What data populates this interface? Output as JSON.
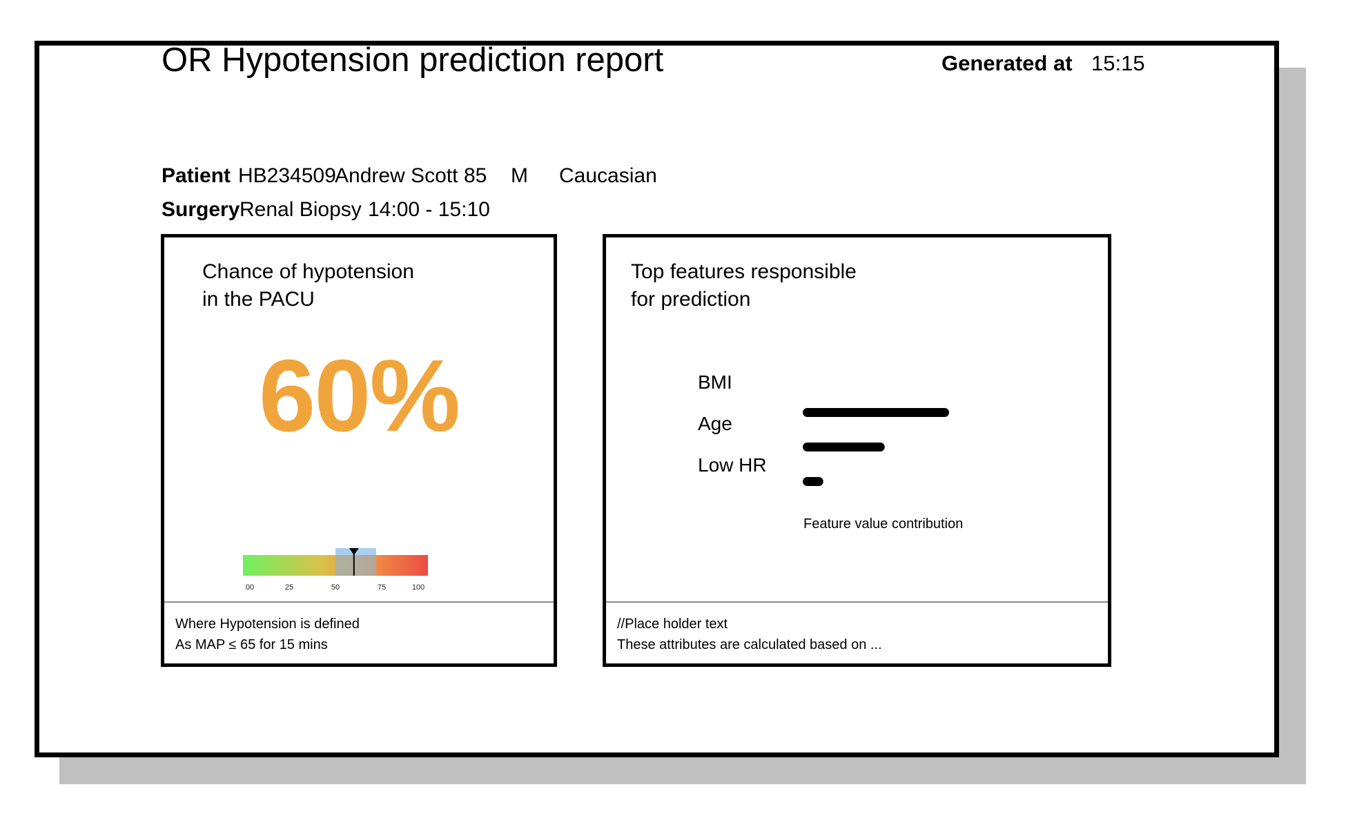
{
  "report": {
    "title": "OR Hypotension prediction report",
    "generated_label": "Generated at",
    "generated_time": "15:15"
  },
  "patient": {
    "label": "Patient",
    "id": "HB234509",
    "name": "Andrew Scott",
    "age": "85",
    "sex": "M",
    "ethnicity": "Caucasian"
  },
  "surgery": {
    "label": "Surgery",
    "procedure": "Renal Biopsy",
    "time_range": "14:00 - 15:10"
  },
  "risk_panel": {
    "title_line1": "Chance of hypotension",
    "title_line2": "in the PACU",
    "percentage": "60%",
    "value": 60,
    "highlight_range": [
      50,
      72
    ],
    "gauge_ticks": [
      "00",
      "25",
      "50",
      "75",
      "100"
    ],
    "footnote_line1": "Where Hypotension is defined",
    "footnote_line2": "As MAP ≤ 65 for 15 mins",
    "accent_color": "#f0a53c"
  },
  "features_panel": {
    "title_line1": "Top features responsible",
    "title_line2": "for prediction",
    "features": [
      {
        "label": "BMI",
        "value": 1.0
      },
      {
        "label": "Age",
        "value": 0.56
      },
      {
        "label": "Low HR",
        "value": 0.14
      }
    ],
    "axis_label": "Feature value contribution",
    "footnote_line1": "//Place holder text",
    "footnote_line2": "These attributes are calculated based on ..."
  }
}
